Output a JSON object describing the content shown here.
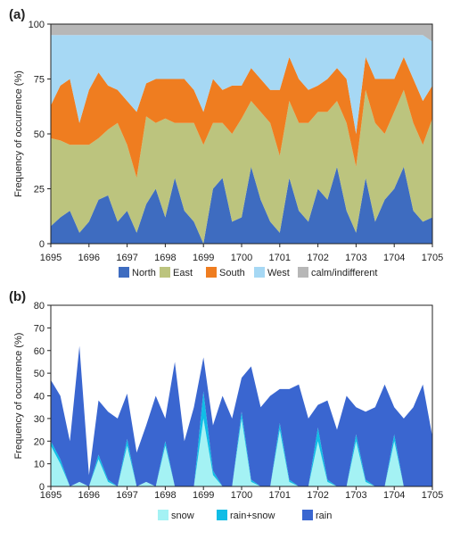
{
  "chart_data": [
    {
      "panel": "(a)",
      "type": "area",
      "stacked": true,
      "ylabel": "Frequency of occurrence (%)",
      "xlabel": "",
      "xlim": [
        1695,
        1705
      ],
      "ylim": [
        0,
        100
      ],
      "xticks": [
        "1695",
        "1696",
        "1697",
        "1698",
        "1699",
        "1700",
        "1701",
        "1702",
        "1703",
        "1704",
        "1705"
      ],
      "yticks": [
        "0",
        "25",
        "50",
        "75",
        "100"
      ],
      "legend_position": "bottom",
      "x": [
        1695.0,
        1695.25,
        1695.5,
        1695.75,
        1696.0,
        1696.25,
        1696.5,
        1696.75,
        1697.0,
        1697.25,
        1697.5,
        1697.75,
        1698.0,
        1698.25,
        1698.5,
        1698.75,
        1699.0,
        1699.25,
        1699.5,
        1699.75,
        1700.0,
        1700.25,
        1700.5,
        1700.75,
        1701.0,
        1701.25,
        1701.5,
        1701.75,
        1702.0,
        1702.25,
        1702.5,
        1702.75,
        1703.0,
        1703.25,
        1703.5,
        1703.75,
        1704.0,
        1704.25,
        1704.5,
        1704.75,
        1705.0
      ],
      "series": [
        {
          "name": "North",
          "color": "#3e6cc0",
          "values": [
            8,
            12,
            15,
            5,
            10,
            20,
            22,
            10,
            15,
            5,
            18,
            25,
            12,
            30,
            15,
            10,
            0,
            25,
            30,
            10,
            12,
            35,
            20,
            10,
            5,
            30,
            15,
            10,
            25,
            20,
            35,
            15,
            5,
            30,
            10,
            20,
            25,
            35,
            15,
            10,
            12
          ]
        },
        {
          "name": "East",
          "color": "#bcc47e",
          "values": [
            40,
            35,
            30,
            40,
            35,
            28,
            30,
            45,
            30,
            25,
            40,
            30,
            45,
            25,
            40,
            45,
            45,
            30,
            25,
            40,
            45,
            30,
            40,
            45,
            35,
            35,
            40,
            45,
            35,
            40,
            30,
            40,
            30,
            40,
            45,
            30,
            35,
            35,
            40,
            35,
            45
          ]
        },
        {
          "name": "South",
          "color": "#ef7d20",
          "values": [
            15,
            25,
            30,
            10,
            25,
            30,
            20,
            15,
            20,
            30,
            15,
            20,
            18,
            20,
            20,
            15,
            15,
            20,
            15,
            22,
            15,
            15,
            15,
            15,
            30,
            20,
            20,
            15,
            12,
            15,
            15,
            20,
            15,
            15,
            20,
            25,
            15,
            15,
            20,
            20,
            15
          ]
        },
        {
          "name": "West",
          "color": "#a6d8f4",
          "values": [
            32,
            23,
            20,
            40,
            25,
            17,
            23,
            25,
            30,
            35,
            22,
            20,
            20,
            20,
            20,
            25,
            35,
            20,
            25,
            23,
            23,
            15,
            20,
            25,
            25,
            10,
            20,
            25,
            23,
            20,
            15,
            20,
            45,
            10,
            20,
            20,
            20,
            10,
            20,
            30,
            20
          ]
        },
        {
          "name": "calm/indifferent",
          "color": "#b7b7b7",
          "values": [
            5,
            5,
            5,
            5,
            5,
            5,
            5,
            5,
            5,
            5,
            5,
            5,
            5,
            5,
            5,
            5,
            5,
            5,
            5,
            5,
            5,
            5,
            5,
            5,
            5,
            5,
            5,
            5,
            5,
            5,
            5,
            5,
            5,
            5,
            5,
            5,
            5,
            5,
            5,
            5,
            8
          ]
        }
      ]
    },
    {
      "panel": "(b)",
      "type": "area",
      "stacked": true,
      "ylabel": "Frequency of occurrence (%)",
      "xlabel": "",
      "xlim": [
        1695,
        1705
      ],
      "ylim": [
        0,
        80
      ],
      "xticks": [
        "1695",
        "1696",
        "1697",
        "1698",
        "1699",
        "1700",
        "1701",
        "1702",
        "1703",
        "1704",
        "1705"
      ],
      "yticks": [
        "0",
        "10",
        "20",
        "30",
        "40",
        "50",
        "60",
        "70",
        "80"
      ],
      "legend_position": "bottom",
      "x": [
        1695.0,
        1695.25,
        1695.5,
        1695.75,
        1696.0,
        1696.25,
        1696.5,
        1696.75,
        1697.0,
        1697.25,
        1697.5,
        1697.75,
        1698.0,
        1698.25,
        1698.5,
        1698.75,
        1699.0,
        1699.25,
        1699.5,
        1699.75,
        1700.0,
        1700.25,
        1700.5,
        1700.75,
        1701.0,
        1701.25,
        1701.5,
        1701.75,
        1702.0,
        1702.25,
        1702.5,
        1702.75,
        1703.0,
        1703.25,
        1703.5,
        1703.75,
        1704.0,
        1704.25,
        1704.5,
        1704.75,
        1705.0
      ],
      "series": [
        {
          "name": "snow",
          "color": "#a4f2f4",
          "values": [
            18,
            10,
            0,
            2,
            0,
            12,
            2,
            0,
            18,
            0,
            2,
            0,
            18,
            0,
            0,
            0,
            30,
            5,
            0,
            0,
            30,
            2,
            0,
            0,
            25,
            2,
            0,
            0,
            20,
            2,
            0,
            0,
            20,
            2,
            0,
            0,
            20,
            0,
            0,
            0,
            0
          ]
        },
        {
          "name": "rain+snow",
          "color": "#10bde6",
          "values": [
            2,
            2,
            0,
            0,
            0,
            2,
            1,
            0,
            3,
            0,
            0,
            0,
            2,
            0,
            0,
            0,
            12,
            2,
            0,
            0,
            3,
            1,
            0,
            0,
            3,
            1,
            0,
            0,
            6,
            1,
            0,
            0,
            3,
            1,
            0,
            0,
            3,
            0,
            0,
            0,
            0
          ]
        },
        {
          "name": "rain",
          "color": "#3a66d0",
          "values": [
            27,
            28,
            20,
            60,
            5,
            24,
            30,
            30,
            20,
            15,
            25,
            40,
            10,
            55,
            20,
            35,
            15,
            20,
            40,
            30,
            15,
            50,
            35,
            40,
            15,
            40,
            45,
            30,
            10,
            35,
            25,
            40,
            12,
            30,
            35,
            45,
            12,
            30,
            35,
            45,
            22
          ]
        }
      ]
    }
  ]
}
